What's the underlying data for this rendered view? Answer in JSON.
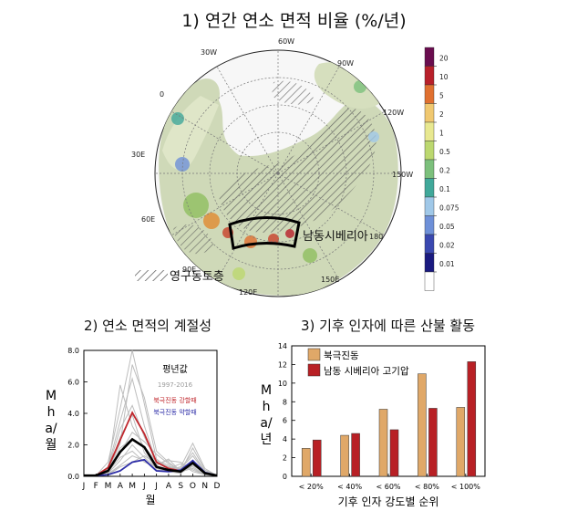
{
  "map_panel": {
    "title": "1) 연간 연소 면적 비율 (%/년)",
    "longitude_labels": [
      "30W",
      "60W",
      "90W",
      "120W",
      "150W",
      "0",
      "30E",
      "60E",
      "90E",
      "120E",
      "150E",
      "180"
    ],
    "region_label": "남동시베리아",
    "permafrost_label": "영구동토층",
    "colorbar": {
      "ticks": [
        "20",
        "10",
        "5",
        "2",
        "1",
        "0.5",
        "0.2",
        "0.1",
        "0.075",
        "0.05",
        "0.02",
        "0.01"
      ],
      "colors": [
        "#6a0d4f",
        "#b8202a",
        "#e07030",
        "#f0c870",
        "#e8e890",
        "#bcd870",
        "#7cc07c",
        "#40a89a",
        "#a0c8e8",
        "#6e90d8",
        "#3a48b0",
        "#1a1a80",
        "#ffffff"
      ]
    }
  },
  "chart_data": [
    {
      "type": "line",
      "title": "2) 연소 면적의 계절성",
      "xlabel": "월",
      "ylabel": "Mha/월",
      "categories": [
        "J",
        "F",
        "M",
        "A",
        "M",
        "J",
        "J",
        "A",
        "S",
        "O",
        "N",
        "D"
      ],
      "ylim": [
        0,
        8
      ],
      "yticks": [
        "0.0",
        "2.0",
        "4.0",
        "6.0",
        "8.0"
      ],
      "legend": {
        "title": "평년값",
        "years": "1997-2016",
        "strong": "북극진동 강할때",
        "weak": "북극진동 약할때"
      },
      "series": [
        {
          "name": "평년값",
          "color": "#000000",
          "values": [
            0.05,
            0.05,
            0.35,
            1.55,
            2.35,
            1.85,
            0.6,
            0.4,
            0.3,
            0.85,
            0.2,
            0.05
          ]
        },
        {
          "name": "북극진동 강할때",
          "color": "#c0272d",
          "values": [
            0.05,
            0.05,
            0.55,
            2.3,
            4.05,
            2.7,
            0.9,
            0.5,
            0.35,
            0.85,
            0.2,
            0.05
          ]
        },
        {
          "name": "북극진동 약할때",
          "color": "#2f2fa8",
          "values": [
            0.05,
            0.05,
            0.1,
            0.35,
            0.9,
            1.05,
            0.35,
            0.3,
            0.4,
            1.0,
            0.25,
            0.05
          ]
        }
      ],
      "gray_years": [
        [
          0.05,
          0.05,
          0.2,
          1.0,
          2.0,
          1.2,
          0.5,
          0.4,
          0.3,
          0.9,
          0.2,
          0.05
        ],
        [
          0.05,
          0.05,
          0.6,
          3.5,
          6.2,
          3.2,
          0.9,
          0.6,
          0.4,
          0.6,
          0.1,
          0.05
        ],
        [
          0.05,
          0.05,
          0.3,
          2.1,
          7.1,
          5.0,
          1.6,
          0.9,
          0.3,
          1.8,
          0.4,
          0.05
        ],
        [
          0.05,
          0.05,
          0.15,
          0.7,
          1.3,
          1.0,
          0.4,
          0.3,
          0.5,
          1.3,
          0.3,
          0.05
        ],
        [
          0.05,
          0.05,
          0.9,
          4.3,
          8.0,
          4.6,
          1.1,
          0.5,
          0.8,
          0.3,
          0.1,
          0.05
        ],
        [
          0.05,
          0.05,
          0.4,
          5.8,
          3.2,
          1.8,
          0.7,
          1.1,
          0.3,
          0.5,
          0.1,
          0.05
        ],
        [
          0.05,
          0.05,
          0.2,
          1.5,
          2.8,
          2.2,
          1.4,
          0.8,
          0.4,
          1.0,
          0.2,
          0.05
        ],
        [
          0.05,
          0.05,
          0.3,
          1.2,
          1.6,
          0.9,
          0.6,
          0.4,
          0.6,
          2.1,
          0.5,
          0.05
        ],
        [
          0.05,
          0.05,
          0.25,
          2.5,
          3.9,
          1.5,
          0.5,
          0.3,
          0.2,
          0.7,
          0.2,
          0.05
        ],
        [
          0.05,
          0.05,
          0.1,
          0.6,
          0.9,
          1.3,
          0.8,
          1.0,
          0.9,
          0.4,
          0.1,
          0.05
        ],
        [
          0.05,
          0.05,
          0.5,
          3.0,
          4.5,
          2.5,
          1.0,
          0.7,
          0.3,
          0.8,
          0.2,
          0.05
        ],
        [
          0.05,
          0.05,
          0.2,
          1.8,
          2.4,
          1.9,
          0.9,
          0.6,
          0.5,
          1.5,
          0.3,
          0.05
        ]
      ]
    },
    {
      "type": "bar",
      "title": "3) 기후 인자에 따른 산불 활동",
      "xlabel": "기후 인자 강도별 순위",
      "ylabel": "Mha/년",
      "categories": [
        "< 20%",
        "< 40%",
        "< 60%",
        "< 80%",
        "< 100%"
      ],
      "ylim": [
        0,
        14
      ],
      "yticks": [
        "0",
        "2",
        "4",
        "6",
        "8",
        "10",
        "12",
        "14"
      ],
      "series": [
        {
          "name": "북극진동",
          "color": "#e0a868",
          "values": [
            3.0,
            4.4,
            7.2,
            11.0,
            7.4
          ]
        },
        {
          "name": "남동 시베리아 고기압",
          "color": "#b82025",
          "values": [
            3.9,
            4.6,
            5.0,
            7.3,
            12.3
          ]
        }
      ]
    }
  ]
}
